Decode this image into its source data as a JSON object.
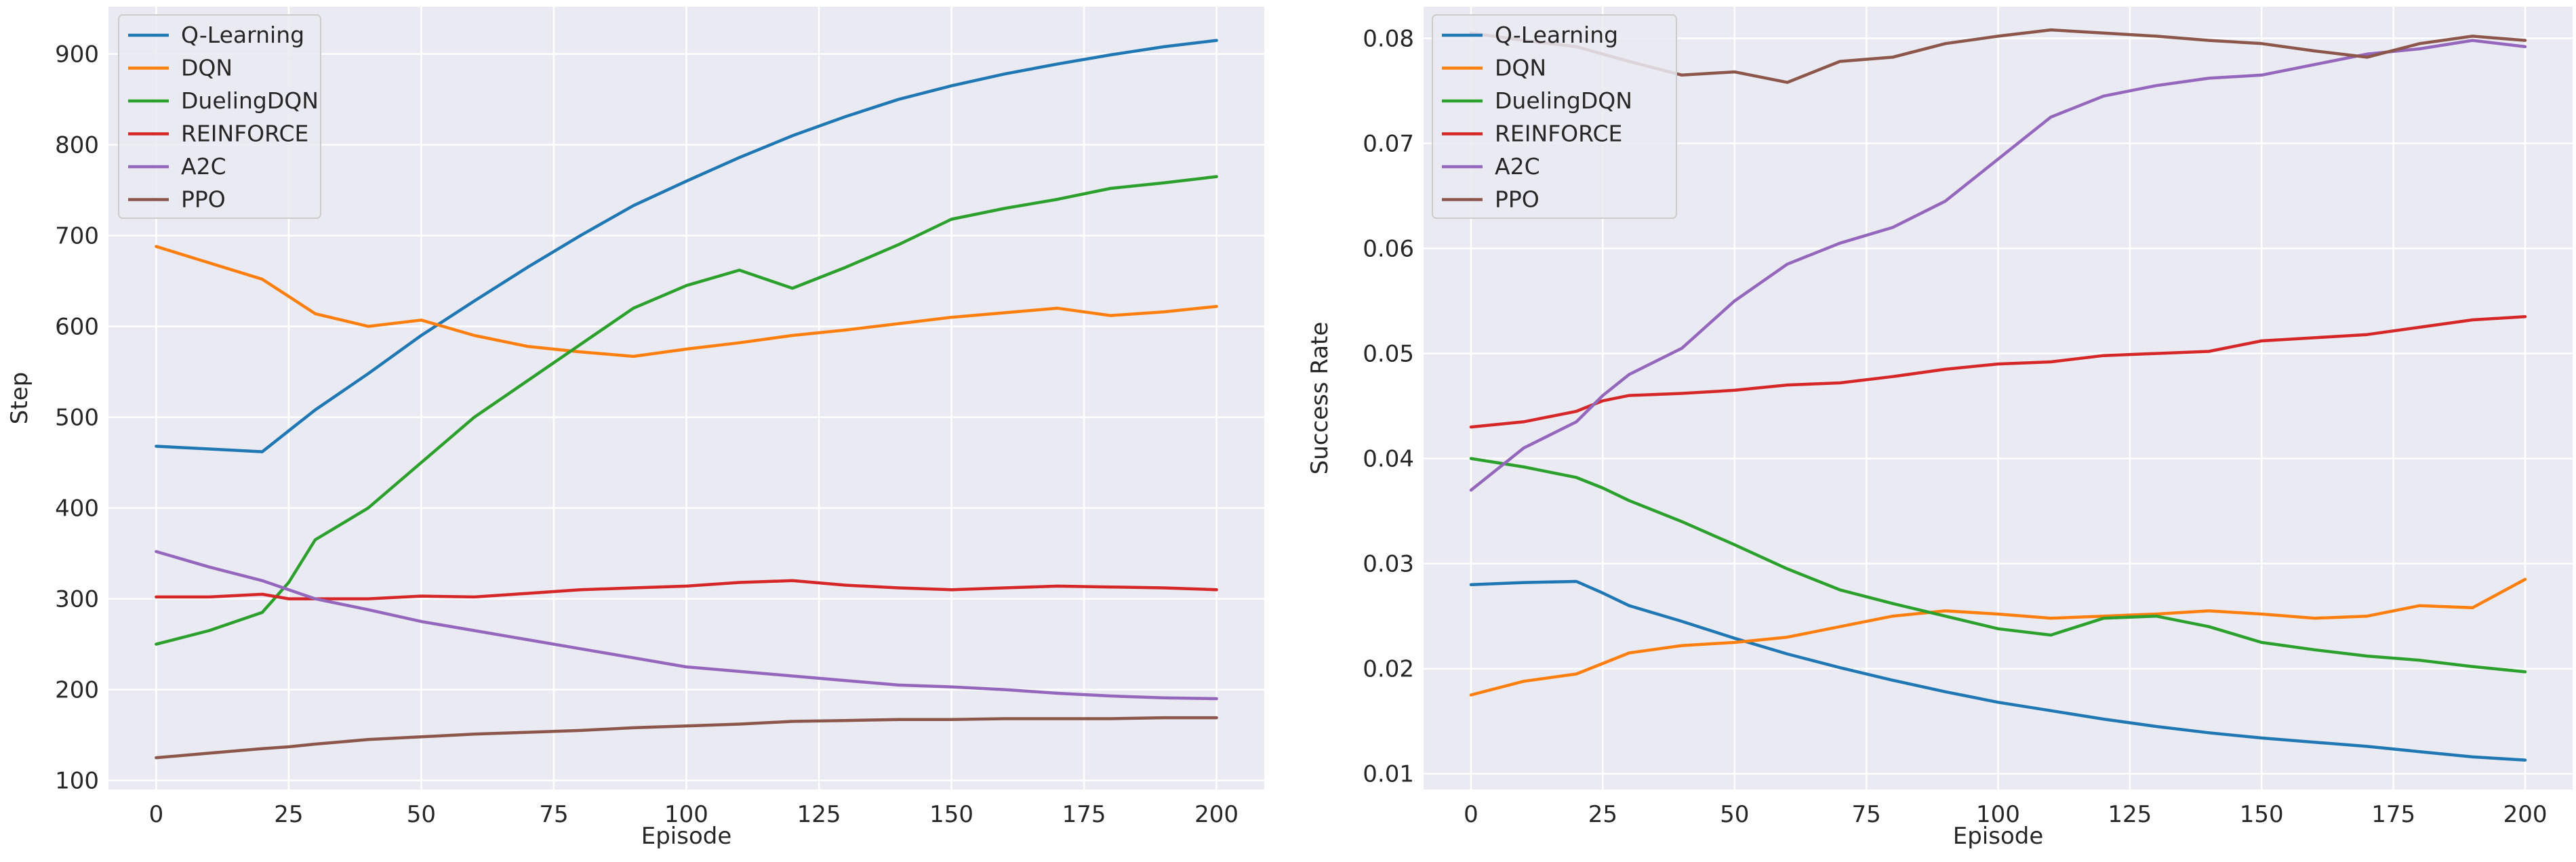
{
  "chart_data": [
    {
      "type": "line",
      "title": "",
      "xlabel": "Episode",
      "ylabel": "Step",
      "xlim": [
        -9,
        209
      ],
      "ylim": [
        90,
        952
      ],
      "xticks": [
        0,
        25,
        50,
        75,
        100,
        125,
        150,
        175,
        200
      ],
      "yticks": [
        100,
        200,
        300,
        400,
        500,
        600,
        700,
        800,
        900
      ],
      "xtick_labels": [
        "0",
        "25",
        "50",
        "75",
        "100",
        "125",
        "150",
        "175",
        "200"
      ],
      "ytick_labels": [
        "100",
        "200",
        "300",
        "400",
        "500",
        "600",
        "700",
        "800",
        "900"
      ],
      "grid": true,
      "legend_position": "top-left",
      "x": [
        0,
        10,
        20,
        25,
        30,
        40,
        50,
        60,
        70,
        80,
        90,
        100,
        110,
        120,
        130,
        140,
        150,
        160,
        170,
        180,
        190,
        200
      ],
      "series": [
        {
          "name": "Q-Learning",
          "color": "#1f77b4",
          "values": [
            468,
            465,
            462,
            485,
            508,
            548,
            590,
            628,
            665,
            700,
            733,
            760,
            786,
            810,
            831,
            850,
            865,
            878,
            889,
            899,
            908,
            915
          ]
        },
        {
          "name": "DQN",
          "color": "#ff7f0e",
          "values": [
            688,
            670,
            652,
            633,
            614,
            600,
            607,
            590,
            578,
            572,
            567,
            575,
            582,
            590,
            596,
            603,
            610,
            615,
            620,
            612,
            616,
            622
          ]
        },
        {
          "name": "DuelingDQN",
          "color": "#2ca02c",
          "values": [
            250,
            265,
            285,
            318,
            365,
            400,
            450,
            500,
            540,
            580,
            620,
            645,
            662,
            642,
            665,
            690,
            718,
            730,
            740,
            752,
            758,
            765
          ]
        },
        {
          "name": "REINFORCE",
          "color": "#d62728",
          "values": [
            302,
            302,
            305,
            300,
            300,
            300,
            303,
            302,
            306,
            310,
            312,
            314,
            318,
            320,
            315,
            312,
            310,
            312,
            314,
            313,
            312,
            310
          ]
        },
        {
          "name": "A2C",
          "color": "#9467bd",
          "values": [
            352,
            335,
            320,
            310,
            300,
            288,
            275,
            265,
            255,
            245,
            235,
            225,
            220,
            215,
            210,
            205,
            203,
            200,
            196,
            193,
            191,
            190
          ]
        },
        {
          "name": "PPO",
          "color": "#8c564b",
          "values": [
            125,
            130,
            135,
            137,
            140,
            145,
            148,
            151,
            153,
            155,
            158,
            160,
            162,
            165,
            166,
            167,
            167,
            168,
            168,
            168,
            169,
            169
          ]
        }
      ]
    },
    {
      "type": "line",
      "title": "",
      "xlabel": "Episode",
      "ylabel": "Success Rate",
      "xlim": [
        -9,
        209
      ],
      "ylim": [
        0.0085,
        0.083
      ],
      "xticks": [
        0,
        25,
        50,
        75,
        100,
        125,
        150,
        175,
        200
      ],
      "yticks": [
        0.01,
        0.02,
        0.03,
        0.04,
        0.05,
        0.06,
        0.07,
        0.08
      ],
      "xtick_labels": [
        "0",
        "25",
        "50",
        "75",
        "100",
        "125",
        "150",
        "175",
        "200"
      ],
      "ytick_labels": [
        "0.01",
        "0.02",
        "0.03",
        "0.04",
        "0.05",
        "0.06",
        "0.07",
        "0.08"
      ],
      "grid": true,
      "legend_position": "top-left",
      "x": [
        0,
        10,
        20,
        25,
        30,
        40,
        50,
        60,
        70,
        80,
        90,
        100,
        110,
        120,
        130,
        140,
        150,
        160,
        170,
        180,
        190,
        200
      ],
      "series": [
        {
          "name": "Q-Learning",
          "color": "#1f77b4",
          "values": [
            0.028,
            0.0282,
            0.0283,
            0.0272,
            0.026,
            0.0245,
            0.0229,
            0.0214,
            0.0201,
            0.0189,
            0.0178,
            0.0168,
            0.016,
            0.0152,
            0.0145,
            0.0139,
            0.0134,
            0.013,
            0.0126,
            0.0121,
            0.0116,
            0.0113
          ]
        },
        {
          "name": "DQN",
          "color": "#ff7f0e",
          "values": [
            0.0175,
            0.0188,
            0.0195,
            0.0205,
            0.0215,
            0.0222,
            0.0225,
            0.023,
            0.024,
            0.025,
            0.0255,
            0.0252,
            0.0248,
            0.025,
            0.0252,
            0.0255,
            0.0252,
            0.0248,
            0.025,
            0.026,
            0.0258,
            0.0285
          ]
        },
        {
          "name": "DuelingDQN",
          "color": "#2ca02c",
          "values": [
            0.04,
            0.0392,
            0.0382,
            0.0372,
            0.036,
            0.034,
            0.0318,
            0.0295,
            0.0275,
            0.0262,
            0.025,
            0.0238,
            0.0232,
            0.0248,
            0.025,
            0.024,
            0.0225,
            0.0218,
            0.0212,
            0.0208,
            0.0202,
            0.0197
          ]
        },
        {
          "name": "REINFORCE",
          "color": "#d62728",
          "values": [
            0.043,
            0.0435,
            0.0445,
            0.0455,
            0.046,
            0.0462,
            0.0465,
            0.047,
            0.0472,
            0.0478,
            0.0485,
            0.049,
            0.0492,
            0.0498,
            0.05,
            0.0502,
            0.0512,
            0.0515,
            0.0518,
            0.0525,
            0.0532,
            0.0535
          ]
        },
        {
          "name": "A2C",
          "color": "#9467bd",
          "values": [
            0.037,
            0.041,
            0.0435,
            0.046,
            0.048,
            0.0505,
            0.055,
            0.0585,
            0.0605,
            0.062,
            0.0645,
            0.0685,
            0.0725,
            0.0745,
            0.0755,
            0.0762,
            0.0765,
            0.0775,
            0.0785,
            0.079,
            0.0798,
            0.0792
          ]
        },
        {
          "name": "PPO",
          "color": "#8c564b",
          "values": [
            0.0805,
            0.0798,
            0.0792,
            0.0785,
            0.0778,
            0.0765,
            0.0768,
            0.0758,
            0.0778,
            0.0782,
            0.0795,
            0.0802,
            0.0808,
            0.0805,
            0.0802,
            0.0798,
            0.0795,
            0.0788,
            0.0782,
            0.0795,
            0.0802,
            0.0798
          ]
        }
      ]
    }
  ]
}
